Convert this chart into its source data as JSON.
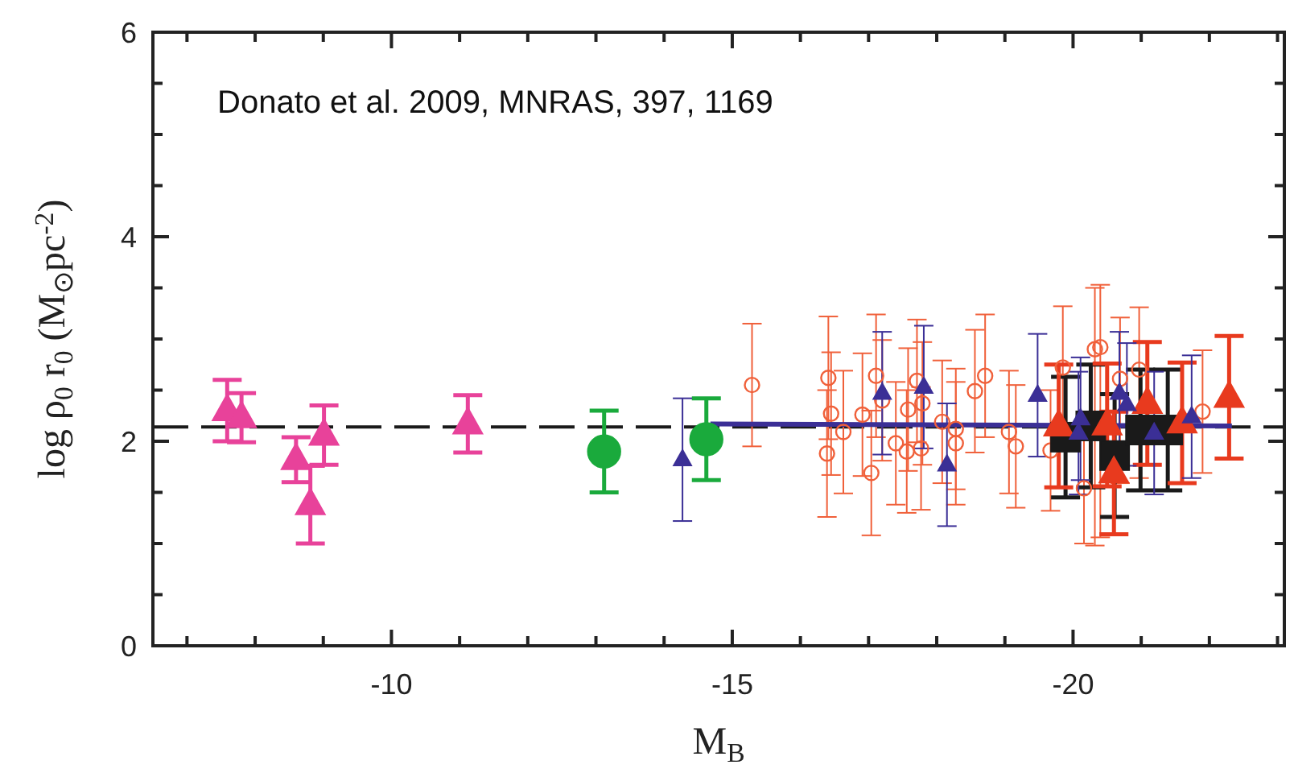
{
  "chart_data": {
    "type": "scatter",
    "xlabel": "M$_{B}$",
    "ylabel": "log ρ$_{0}$ r$_{0}$ (M$_{⊙}$pc$^{-2}$)",
    "annotations": [
      "Donato et al. 2009, MNRAS, 397, 1169"
    ],
    "xlim": [
      -6.5,
      -23.1
    ],
    "xticks": [
      {
        "value": -7,
        "label": null
      },
      {
        "value": -8,
        "label": null
      },
      {
        "value": -9,
        "label": null
      },
      -10,
      {
        "value": -11,
        "label": null
      },
      {
        "value": -12,
        "label": null
      },
      {
        "value": -13,
        "label": null
      },
      {
        "value": -14,
        "label": null
      },
      -15,
      {
        "value": -16,
        "label": null
      },
      {
        "value": -17,
        "label": null
      },
      {
        "value": -18,
        "label": null
      },
      {
        "value": -19,
        "label": null
      },
      -20,
      {
        "value": -21,
        "label": null
      },
      {
        "value": -22,
        "label": null
      },
      {
        "value": -23,
        "label": null
      }
    ],
    "ylim": [
      0,
      6
    ],
    "yticks": [
      0,
      {
        "value": 0.5,
        "label": null
      },
      {
        "value": 1,
        "label": null
      },
      {
        "value": 1.5,
        "label": null
      },
      2,
      {
        "value": 2.5,
        "label": null
      },
      {
        "value": 3,
        "label": null
      },
      {
        "value": 3.5,
        "label": null
      },
      4,
      {
        "value": 4.5,
        "label": null
      },
      {
        "value": 5,
        "label": null
      },
      {
        "value": 5.5,
        "label": null
      },
      6
    ],
    "grid": false,
    "legend": false,
    "ref_lines": [
      {
        "axis": "y",
        "value": 2.14,
        "color": "#1a1a1a",
        "line_style": "dashed"
      }
    ],
    "series": [
      {
        "color": "#e8429a",
        "marker": "triangle",
        "x": [
          -7.59,
          -7.8,
          -8.6,
          -9.01,
          -8.81,
          -11.12
        ],
        "values": [
          2.3,
          2.23,
          1.82,
          2.06,
          1.38,
          2.17
        ],
        "errors": [
          0.3,
          0.24,
          0.22,
          0.29,
          0.38,
          0.28
        ]
      },
      {
        "color": "#1aaa3c",
        "marker": "circle",
        "x": [
          -13.12,
          -14.62
        ],
        "values": [
          1.9,
          2.02
        ],
        "errors": [
          0.4,
          0.4
        ]
      },
      {
        "color": "#f0603a",
        "marker": "circle",
        "x": [
          -15.29,
          -16.41,
          -16.45,
          -16.39,
          -16.63,
          -16.91,
          -17.04,
          -17.11,
          -17.2,
          -17.4,
          -17.56,
          -17.58,
          -17.71,
          -17.79,
          -17.77,
          -18.08,
          -18.28,
          -18.28,
          -18.56,
          -18.71,
          -19.06,
          -19.16,
          -19.67,
          -19.85,
          -20.32,
          -20.4,
          -20.16,
          -20.69,
          -20.97,
          -21.9
        ],
        "values": [
          2.55,
          2.62,
          2.27,
          1.88,
          2.09,
          2.26,
          1.69,
          2.64,
          2.4,
          1.98,
          1.9,
          2.31,
          2.59,
          2.37,
          1.93,
          2.19,
          2.12,
          1.98,
          2.49,
          2.64,
          2.09,
          1.95,
          1.91,
          2.72,
          2.9,
          2.92,
          1.54,
          2.61,
          2.7,
          2.29
        ],
        "errors": [
          0.6,
          0.6,
          0.6,
          0.62,
          0.6,
          0.6,
          0.61,
          0.6,
          0.59,
          0.6,
          0.6,
          0.6,
          0.6,
          0.6,
          0.6,
          0.6,
          0.59,
          0.6,
          0.6,
          0.6,
          0.6,
          0.6,
          0.59,
          0.6,
          [
            0.98,
            3.5
          ],
          [
            1.06,
            3.53
          ],
          0.54,
          [
            1.59,
            3.21
          ],
          [
            1.64,
            3.31
          ],
          0.6
        ]
      },
      {
        "color": "#1a1a1a",
        "marker": "square",
        "x": [
          -19.89,
          -20.26,
          -20.61,
          -20.99,
          -21.39
        ],
        "values": [
          2.04,
          2.15,
          1.86,
          2.11,
          2.11
        ],
        "errors": [
          0.59,
          0.6,
          0.6,
          0.59,
          0.59
        ]
      },
      {
        "color": "#e83a1e",
        "marker": "triangle",
        "x": [
          -19.79,
          -20.5,
          -20.6,
          -21.09,
          -21.6,
          -22.29
        ],
        "values": [
          2.15,
          2.16,
          1.69,
          2.37,
          2.18,
          2.43
        ],
        "errors": [
          0.6,
          0.6,
          0.6,
          0.6,
          0.59,
          0.6
        ]
      },
      {
        "color": "#3b2f96",
        "marker": "triangle",
        "x": [
          -14.27,
          -17.2,
          -17.81,
          -18.15,
          -19.48,
          -20.11,
          -20.08,
          -20.68,
          -20.79,
          -21.19,
          -21.74
        ],
        "values": [
          1.82,
          2.47,
          2.53,
          1.77,
          2.45,
          2.22,
          2.08,
          2.47,
          2.36,
          2.08,
          2.24
        ],
        "errors": [
          0.6,
          0.6,
          0.6,
          0.6,
          0.6,
          0.6,
          0.6,
          0.6,
          0.6,
          0.6,
          0.6
        ]
      },
      {
        "type": "line",
        "color": "#3b2f96",
        "x": [
          -14.68,
          -22.33
        ],
        "values": [
          2.17,
          2.15
        ]
      }
    ]
  }
}
